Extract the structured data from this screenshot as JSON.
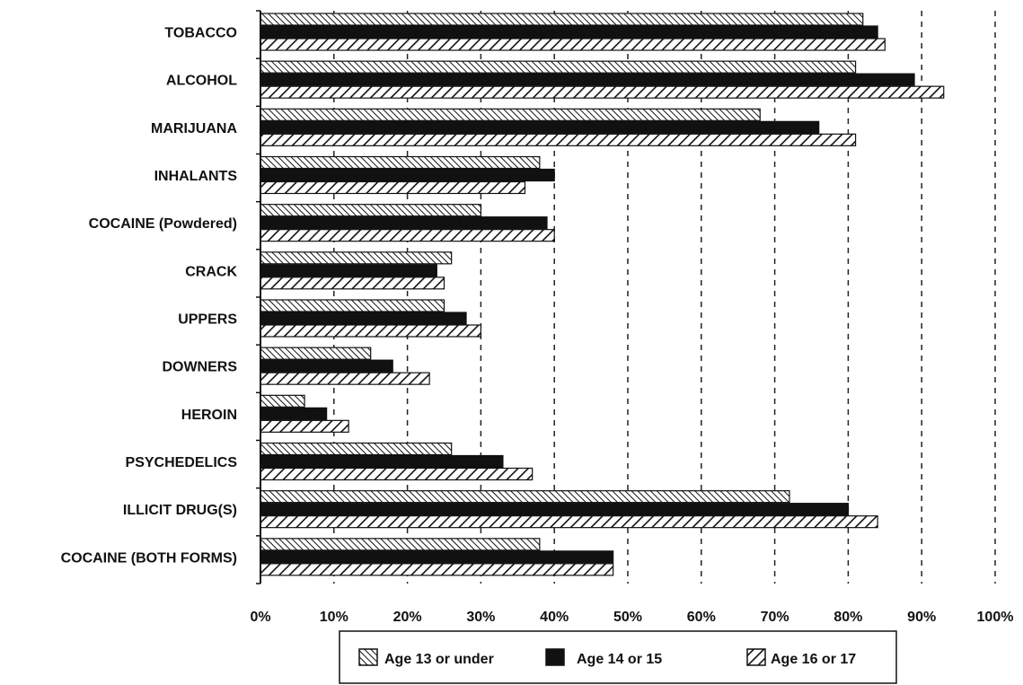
{
  "chart_data": {
    "type": "bar",
    "orientation": "horizontal",
    "title": "",
    "xlabel": "",
    "ylabel": "",
    "xlim": [
      0,
      100
    ],
    "x_unit": "%",
    "x_ticks": [
      "0%",
      "10%",
      "20%",
      "30%",
      "40%",
      "50%",
      "60%",
      "70%",
      "80%",
      "90%",
      "100%"
    ],
    "grid": "vertical dashed lines",
    "legend_position": "bottom",
    "categories": [
      "TOBACCO",
      "ALCOHOL",
      "MARIJUANA",
      "INHALANTS",
      "COCAINE (Powdered)",
      "CRACK",
      "UPPERS",
      "DOWNERS",
      "HEROIN",
      "PSYCHEDELICS",
      "ILLICIT DRUG(S)",
      "COCAINE (BOTH FORMS)"
    ],
    "series": [
      {
        "name": "Age 13 or under",
        "pattern": "dense-diagonal-hatch",
        "values": [
          82,
          81,
          68,
          38,
          30,
          26,
          25,
          15,
          6,
          26,
          72,
          38
        ]
      },
      {
        "name": "Age 14 or 15",
        "pattern": "solid-dark",
        "values": [
          84,
          89,
          76,
          40,
          39,
          24,
          28,
          18,
          9,
          33,
          80,
          48
        ]
      },
      {
        "name": "Age 16 or 17",
        "pattern": "wide-diagonal-hatch",
        "values": [
          85,
          93,
          81,
          36,
          40,
          25,
          30,
          23,
          12,
          37,
          84,
          48
        ]
      }
    ]
  },
  "colors": {
    "ink": "#111111",
    "grid": "#222222",
    "background": "#ffffff"
  }
}
